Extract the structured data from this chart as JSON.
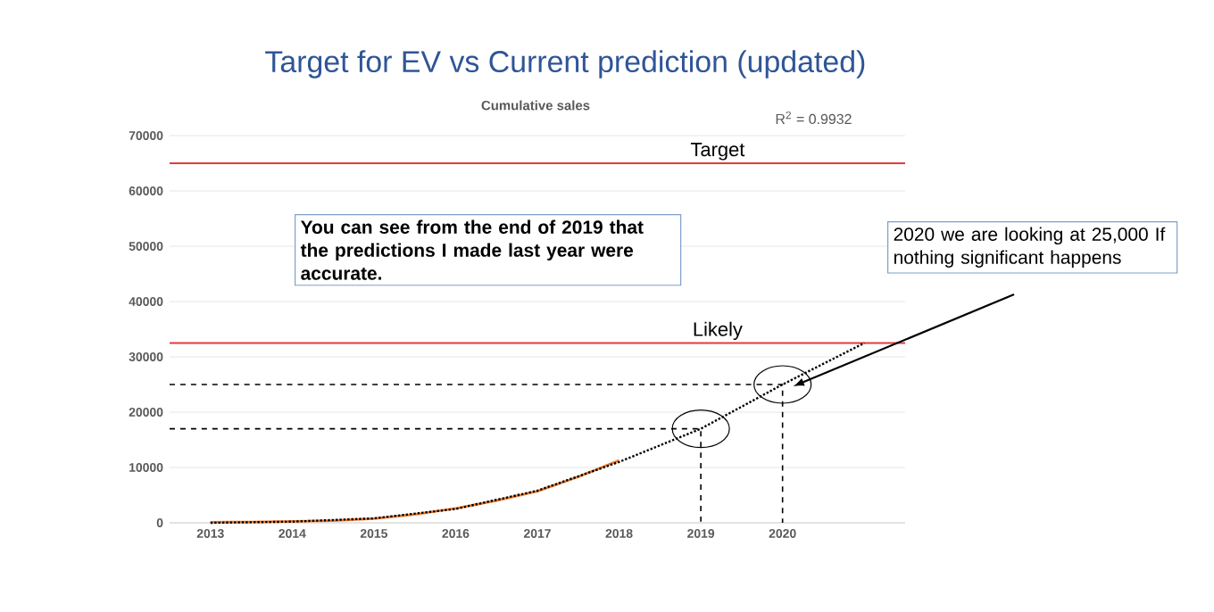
{
  "chart_data": {
    "type": "line",
    "title": "Target for EV vs Current prediction (updated)",
    "subtitle": "Cumulative sales",
    "xlim": [
      2012.5,
      2021.5
    ],
    "xticks": [
      2013,
      2014,
      2015,
      2016,
      2017,
      2018,
      2019,
      2020
    ],
    "ylim": [
      0,
      70000
    ],
    "yticks": [
      0,
      10000,
      20000,
      30000,
      40000,
      50000,
      60000,
      70000
    ],
    "grid": "y",
    "marker": "none",
    "series": [
      {
        "color": "#ed7d31",
        "line_style": "solid",
        "x": [
          2013,
          2013.5,
          2014,
          2014.5,
          2015,
          2015.5,
          2016,
          2016.5,
          2017,
          2017.5,
          2018
        ],
        "values": [
          100,
          150,
          250,
          400,
          750,
          1500,
          2600,
          4000,
          5700,
          8300,
          11300
        ]
      },
      {
        "color": "#000000",
        "line_style": "dotted",
        "x": [
          2013,
          2014,
          2015,
          2016,
          2017,
          2018,
          2019,
          2020,
          2021
        ],
        "values": [
          0,
          200,
          800,
          2500,
          5800,
          11000,
          17000,
          25000,
          32500
        ]
      },
      {
        "color": "#000000",
        "line_style": "dashed",
        "x": [
          2012.5,
          2019,
          2019
        ],
        "values": [
          17000,
          17000,
          0
        ]
      },
      {
        "color": "#000000",
        "line_style": "dashed",
        "x": [
          2012.5,
          2020,
          2020
        ],
        "values": [
          25000,
          25000,
          0
        ]
      }
    ],
    "ref_lines": [
      {
        "axis": "y",
        "value": 65000,
        "label": "Target",
        "color": "#e03c3c"
      },
      {
        "axis": "y",
        "value": 32500,
        "label": "Likely",
        "color": "#e03c3c"
      }
    ],
    "annotations": [
      "R$^{2}$ = 0.9932",
      "You can see from the end of 2019 that the predictions I made last year were accurate.",
      "2020 we are looking at 25,000 If nothing significant happens"
    ]
  }
}
